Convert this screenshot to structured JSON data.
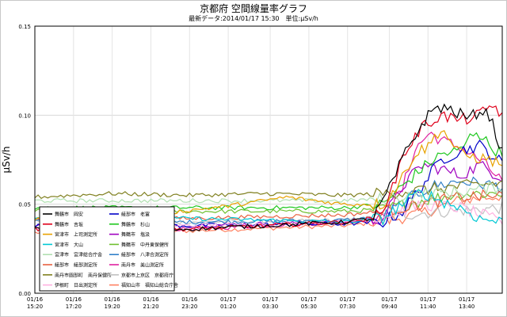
{
  "header": {
    "title": "京都府 空間線量率グラフ",
    "subtitle": "最新データ:2014/01/17 15:30　単位:μSv/h"
  },
  "chart_data": {
    "type": "line",
    "title": "京都府 空間線量率グラフ",
    "ylabel": "μSv/h",
    "xlabel": "",
    "ylim": [
      0,
      0.15
    ],
    "yticks": [
      "0.00",
      "0.05",
      "0.10",
      "0.15"
    ],
    "ytick_values": [
      0,
      0.05,
      0.1,
      0.15
    ],
    "xticks": [
      {
        "date": "01/16",
        "time": "15:20"
      },
      {
        "date": "01/16",
        "time": "17:20"
      },
      {
        "date": "01/16",
        "time": "19:20"
      },
      {
        "date": "01/16",
        "time": "21:20"
      },
      {
        "date": "01/16",
        "time": "23:20"
      },
      {
        "date": "01/17",
        "time": "01:20"
      },
      {
        "date": "01/17",
        "time": "03:30"
      },
      {
        "date": "01/17",
        "time": "05:30"
      },
      {
        "date": "01/17",
        "time": "07:30"
      },
      {
        "date": "01/17",
        "time": "09:40"
      },
      {
        "date": "01/17",
        "time": "11:40"
      },
      {
        "date": "01/17",
        "time": "13:40"
      }
    ],
    "x_hours": [
      0,
      2,
      4,
      6,
      8,
      10,
      12.17,
      14.17,
      16.17,
      18.33,
      20.33,
      22.33
    ],
    "x_max_hours": 24.17,
    "grid": true,
    "legend_placement": "bottom-left",
    "series": [
      {
        "name": "舞鶴市　岡安",
        "color": "#000000",
        "anchors": [
          [
            0,
            0.036
          ],
          [
            8,
            0.036
          ],
          [
            16,
            0.04
          ],
          [
            17.5,
            0.042
          ],
          [
            18.4,
            0.06
          ],
          [
            19.2,
            0.08
          ],
          [
            20.2,
            0.098
          ],
          [
            20.8,
            0.105
          ],
          [
            21.5,
            0.103
          ],
          [
            22.5,
            0.098
          ],
          [
            23.0,
            0.103
          ],
          [
            23.5,
            0.1
          ],
          [
            24.17,
            0.079
          ]
        ]
      },
      {
        "name": "舞鶴市　吉坂",
        "color": "#e0001a",
        "anchors": [
          [
            0,
            0.036
          ],
          [
            8,
            0.036
          ],
          [
            16,
            0.04
          ],
          [
            17.5,
            0.042
          ],
          [
            18.4,
            0.055
          ],
          [
            19.0,
            0.077
          ],
          [
            20.0,
            0.093
          ],
          [
            21.0,
            0.1
          ],
          [
            22.0,
            0.097
          ],
          [
            23.0,
            0.1
          ],
          [
            23.7,
            0.106
          ],
          [
            24.17,
            0.1
          ]
        ]
      },
      {
        "name": "宮津市　上司測定所",
        "color": "#e8a200",
        "anchors": [
          [
            0,
            0.042
          ],
          [
            5,
            0.043
          ],
          [
            10,
            0.049
          ],
          [
            13,
            0.054
          ],
          [
            16,
            0.05
          ],
          [
            18,
            0.05
          ],
          [
            18.8,
            0.061
          ],
          [
            19.6,
            0.078
          ],
          [
            20.4,
            0.083
          ],
          [
            21.0,
            0.093
          ],
          [
            22.0,
            0.078
          ],
          [
            23.0,
            0.076
          ],
          [
            24.17,
            0.073
          ]
        ]
      },
      {
        "name": "宮津市　大山",
        "color": "#00c8d4",
        "anchors": [
          [
            0,
            0.042
          ],
          [
            8,
            0.042
          ],
          [
            16,
            0.04
          ],
          [
            18,
            0.042
          ],
          [
            19.0,
            0.05
          ],
          [
            20.0,
            0.057
          ],
          [
            21.0,
            0.052
          ],
          [
            22.0,
            0.048
          ],
          [
            23.0,
            0.042
          ],
          [
            24.17,
            0.04
          ]
        ]
      },
      {
        "name": "宮津市　宮津総合庁舎",
        "color": "#b0e0b0",
        "anchors": [
          [
            0,
            0.052
          ],
          [
            8,
            0.052
          ],
          [
            16,
            0.052
          ],
          [
            18,
            0.053
          ],
          [
            20,
            0.056
          ],
          [
            22,
            0.057
          ],
          [
            24.17,
            0.06
          ]
        ]
      },
      {
        "name": "綾部市　綾部測定所",
        "color": "#e86040",
        "anchors": [
          [
            0,
            0.042
          ],
          [
            8,
            0.042
          ],
          [
            16,
            0.044
          ],
          [
            18,
            0.046
          ],
          [
            20,
            0.05
          ],
          [
            22,
            0.054
          ],
          [
            24.17,
            0.055
          ]
        ]
      },
      {
        "name": "南丹市園部町　南丹保健所",
        "color": "#808020",
        "anchors": [
          [
            0,
            0.054
          ],
          [
            4,
            0.056
          ],
          [
            8,
            0.055
          ],
          [
            12,
            0.056
          ],
          [
            16,
            0.055
          ],
          [
            18,
            0.056
          ],
          [
            20,
            0.058
          ],
          [
            22,
            0.06
          ],
          [
            24.17,
            0.062
          ]
        ]
      },
      {
        "name": "伊根町　日出測定所",
        "color": "#ffb0e0",
        "anchors": [
          [
            0,
            0.036
          ],
          [
            8,
            0.038
          ],
          [
            16,
            0.04
          ],
          [
            18,
            0.043
          ],
          [
            20,
            0.05
          ],
          [
            22,
            0.048
          ],
          [
            24.17,
            0.04
          ]
        ]
      },
      {
        "name": "綾部市　老富",
        "color": "#0000c8",
        "anchors": [
          [
            0,
            0.038
          ],
          [
            8,
            0.038
          ],
          [
            16,
            0.039
          ],
          [
            18,
            0.04
          ],
          [
            19.0,
            0.046
          ],
          [
            20.0,
            0.06
          ],
          [
            21.0,
            0.075
          ],
          [
            22.0,
            0.08
          ],
          [
            23.0,
            0.083
          ],
          [
            24.17,
            0.073
          ]
        ]
      },
      {
        "name": "舞鶴市　杉山",
        "color": "#20c820",
        "anchors": [
          [
            0,
            0.048
          ],
          [
            8,
            0.048
          ],
          [
            16,
            0.048
          ],
          [
            18,
            0.05
          ],
          [
            19.0,
            0.06
          ],
          [
            20.0,
            0.07
          ],
          [
            21.0,
            0.078
          ],
          [
            22.0,
            0.08
          ],
          [
            22.8,
            0.092
          ],
          [
            23.5,
            0.083
          ],
          [
            24.17,
            0.078
          ]
        ]
      },
      {
        "name": "舞鶴市　塩汲",
        "color": "#a000c0",
        "anchors": [
          [
            0,
            0.038
          ],
          [
            8,
            0.038
          ],
          [
            16,
            0.04
          ],
          [
            18,
            0.042
          ],
          [
            19.0,
            0.06
          ],
          [
            20.0,
            0.072
          ],
          [
            21.0,
            0.07
          ],
          [
            22.0,
            0.066
          ],
          [
            23.0,
            0.072
          ],
          [
            24.17,
            0.065
          ]
        ]
      },
      {
        "name": "舞鶴市　中丹東保健所",
        "color": "#70c030",
        "anchors": [
          [
            0,
            0.046
          ],
          [
            8,
            0.046
          ],
          [
            16,
            0.046
          ],
          [
            18,
            0.047
          ],
          [
            20,
            0.052
          ],
          [
            22,
            0.056
          ],
          [
            24.17,
            0.056
          ]
        ]
      },
      {
        "name": "綾部市　八津合測定所",
        "color": "#3080c8",
        "anchors": [
          [
            0,
            0.04
          ],
          [
            8,
            0.04
          ],
          [
            16,
            0.041
          ],
          [
            18,
            0.043
          ],
          [
            19.5,
            0.054
          ],
          [
            20.5,
            0.06
          ],
          [
            22,
            0.063
          ],
          [
            24.17,
            0.06
          ]
        ]
      },
      {
        "name": "南丹市　美山測定所",
        "color": "#e020a0",
        "anchors": [
          [
            0,
            0.036
          ],
          [
            8,
            0.036
          ],
          [
            16,
            0.04
          ],
          [
            18,
            0.042
          ],
          [
            19.0,
            0.058
          ],
          [
            19.6,
            0.08
          ],
          [
            20.4,
            0.09
          ],
          [
            21.2,
            0.085
          ],
          [
            22.0,
            0.082
          ],
          [
            23.0,
            0.075
          ],
          [
            24.17,
            0.063
          ]
        ]
      },
      {
        "name": "京都市上京区　京都府庁",
        "color": "#c0c0c0",
        "anchors": [
          [
            0,
            0.04
          ],
          [
            8,
            0.04
          ],
          [
            16,
            0.041
          ],
          [
            20,
            0.045
          ],
          [
            24.17,
            0.048
          ]
        ]
      },
      {
        "name": "福知山市　福知山総合庁舎",
        "color": "#ff8060",
        "anchors": [
          [
            0,
            0.034
          ],
          [
            8,
            0.035
          ],
          [
            16,
            0.038
          ],
          [
            18,
            0.04
          ],
          [
            20,
            0.045
          ],
          [
            22,
            0.052
          ],
          [
            24.17,
            0.055
          ]
        ]
      }
    ]
  }
}
